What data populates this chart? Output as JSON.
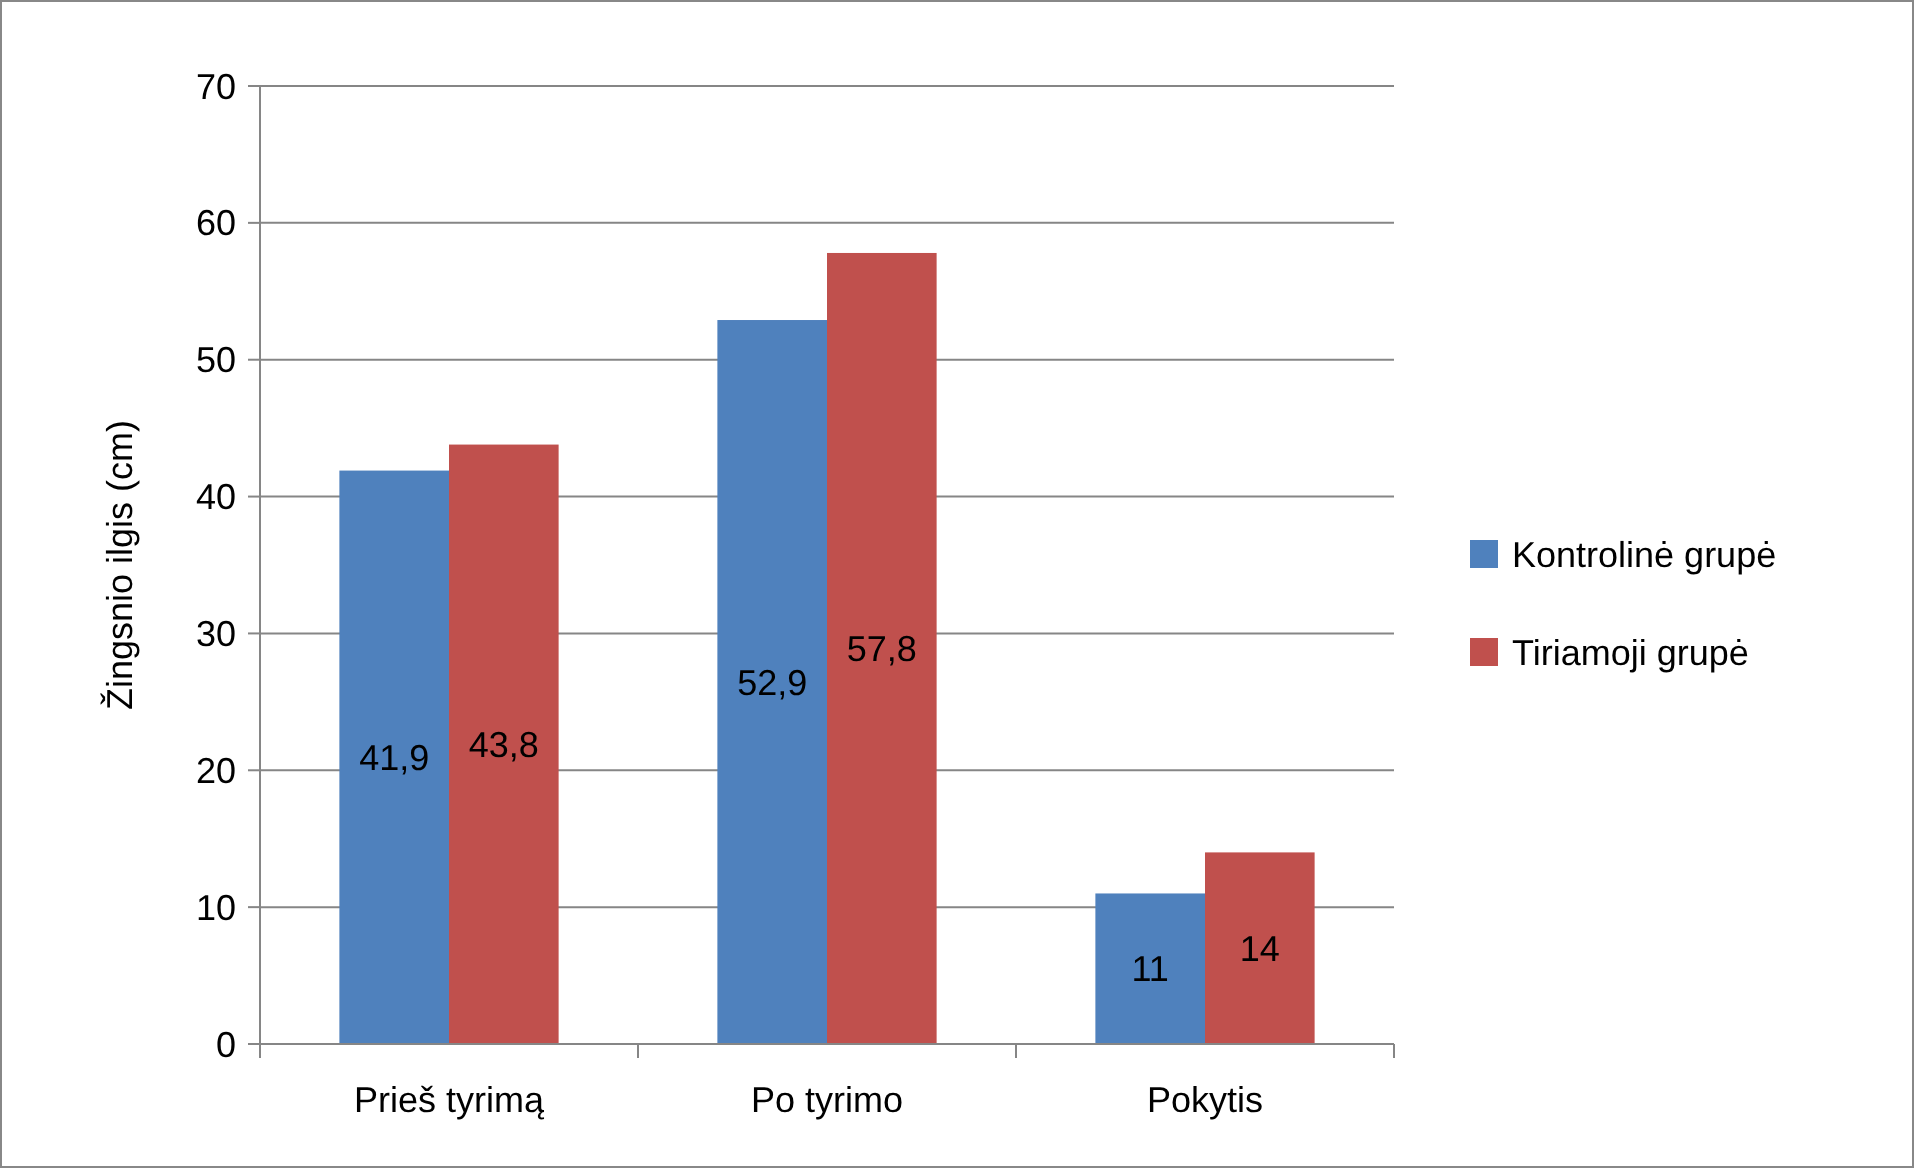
{
  "chart_data": {
    "type": "bar",
    "ylabel": "Žingsnio ilgis (cm)",
    "categories": [
      "Prieš tyrimą",
      "Po tyrimo",
      "Pokytis"
    ],
    "series": [
      {
        "name": "Kontrolinė grupė",
        "color": "#4f81bd",
        "values": [
          41.9,
          52.9,
          11
        ],
        "value_labels": [
          "41,9",
          "52,9",
          "11"
        ]
      },
      {
        "name": "Tiriamoji grupė",
        "color": "#c0504d",
        "values": [
          43.8,
          57.8,
          14
        ],
        "value_labels": [
          "43,8",
          "57,8",
          "14"
        ]
      }
    ],
    "ylim": [
      0,
      70
    ],
    "yticks": [
      0,
      10,
      20,
      30,
      40,
      50,
      60,
      70
    ],
    "grid": "y",
    "legend": "right"
  }
}
